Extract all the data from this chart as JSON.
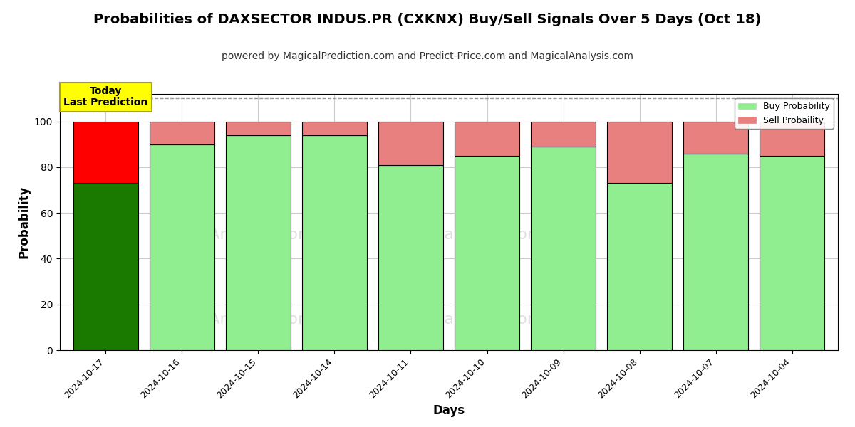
{
  "title": "Probabilities of DAXSECTOR INDUS.PR (CXKNX) Buy/Sell Signals Over 5 Days (Oct 18)",
  "subtitle": "powered by MagicalPrediction.com and Predict-Price.com and MagicalAnalysis.com",
  "xlabel": "Days",
  "ylabel": "Probability",
  "dates": [
    "2024-10-17",
    "2024-10-16",
    "2024-10-15",
    "2024-10-14",
    "2024-10-11",
    "2024-10-10",
    "2024-10-09",
    "2024-10-08",
    "2024-10-07",
    "2024-10-04"
  ],
  "buy_values": [
    73,
    90,
    94,
    94,
    81,
    85,
    89,
    73,
    86,
    85
  ],
  "sell_values": [
    27,
    10,
    6,
    6,
    19,
    15,
    11,
    27,
    14,
    15
  ],
  "today_buy_color": "#1a7a00",
  "today_sell_color": "#ff0000",
  "buy_color": "#90ee90",
  "sell_color": "#e88080",
  "ylim": [
    0,
    112
  ],
  "yticks": [
    0,
    20,
    40,
    60,
    80,
    100
  ],
  "dashed_line_y": 110,
  "dashed_line_color": "#999999",
  "watermark_color": "#cccccc",
  "background_color": "#ffffff",
  "grid_color": "#cccccc",
  "today_annotation": "Today\nLast Prediction",
  "today_annotation_bg": "#ffff00",
  "today_annotation_border": "#aaa800",
  "legend_buy": "Buy Probability",
  "legend_sell": "Sell Probaility",
  "title_fontsize": 14,
  "subtitle_fontsize": 10,
  "axis_label_fontsize": 12,
  "bar_width": 0.85
}
